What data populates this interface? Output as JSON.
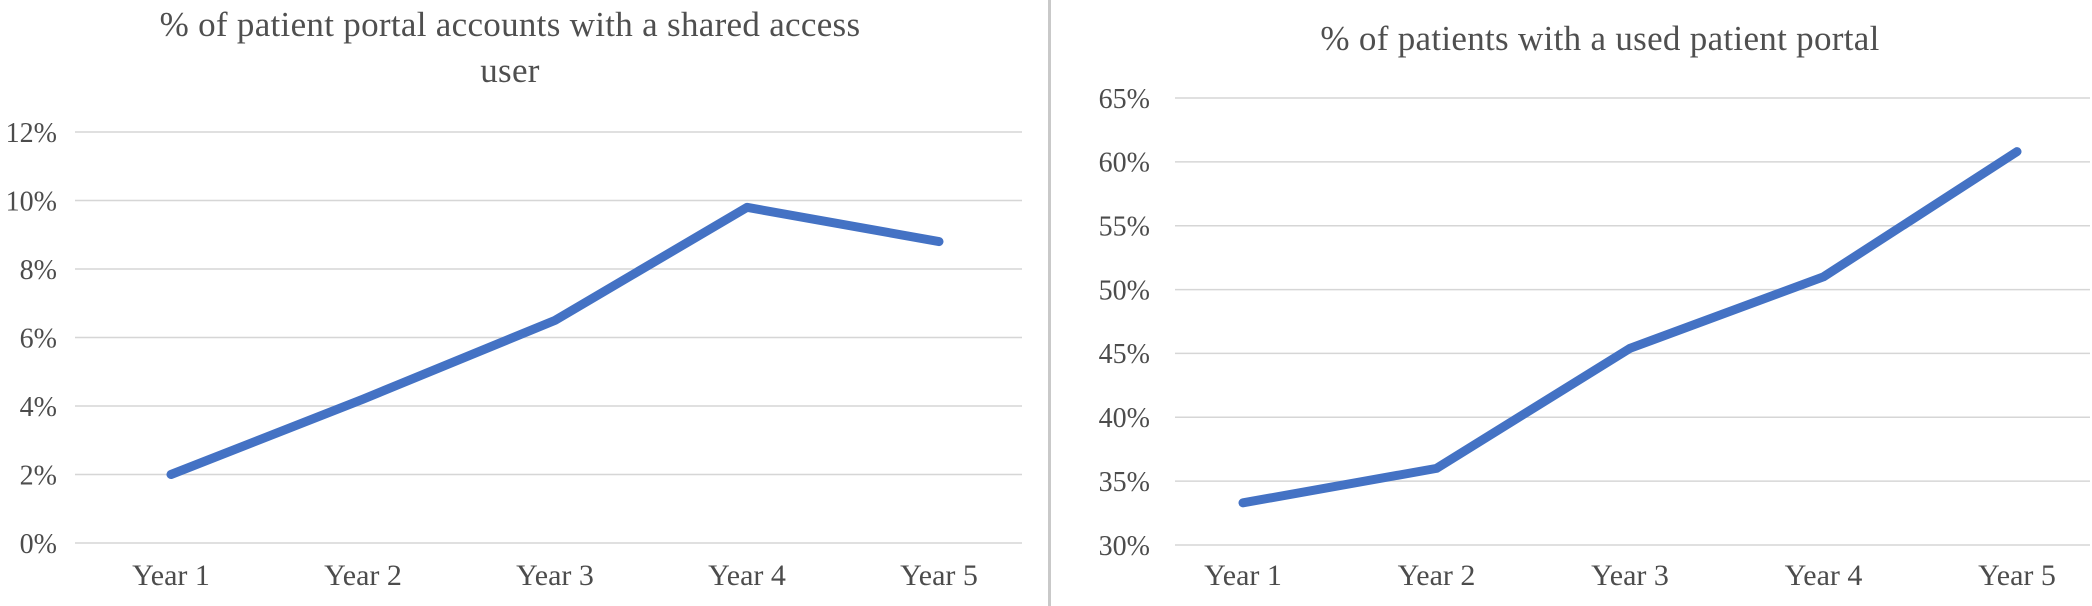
{
  "figure": {
    "background": "#ffffff",
    "panel_count": 2
  },
  "colors": {
    "line": "#4472C4",
    "grid": "#d6d6d6",
    "divider": "#c9c9c9",
    "title_text": "#4f4f4f",
    "tick_text": "#4c4c4c"
  },
  "chart_data": [
    {
      "id": "shared-access-portal-accounts",
      "type": "line",
      "title": "% of patient portal accounts with a shared access user",
      "title_lines": [
        "% of patient portal accounts with a shared access",
        "user"
      ],
      "categories": [
        "Year 1",
        "Year 2",
        "Year 3",
        "Year 4",
        "Year 5"
      ],
      "values": [
        2.0,
        4.2,
        6.5,
        9.8,
        8.8
      ],
      "xlabel": "",
      "ylabel": "",
      "ylim": [
        0,
        12
      ],
      "y_tick_values": [
        0,
        2,
        4,
        6,
        8,
        10,
        12
      ],
      "y_tick_labels": [
        "0%",
        "2%",
        "4%",
        "6%",
        "8%",
        "10%",
        "12%"
      ],
      "grid": "horizontal",
      "legend": "none",
      "line_color": "#4472C4"
    },
    {
      "id": "used-patient-portal",
      "type": "line",
      "title": "% of patients with a used patient portal",
      "title_lines": [
        "% of patients with a used patient portal"
      ],
      "categories": [
        "Year 1",
        "Year 2",
        "Year 3",
        "Year 4",
        "Year 5"
      ],
      "values": [
        33.3,
        36.0,
        45.4,
        51.0,
        60.8
      ],
      "xlabel": "",
      "ylabel": "",
      "ylim": [
        30,
        65
      ],
      "y_tick_values": [
        30,
        35,
        40,
        45,
        50,
        55,
        60,
        65
      ],
      "y_tick_labels": [
        "30%",
        "35%",
        "40%",
        "45%",
        "50%",
        "55%",
        "60%",
        "65%"
      ],
      "grid": "horizontal",
      "legend": "none",
      "line_color": "#4472C4"
    }
  ]
}
